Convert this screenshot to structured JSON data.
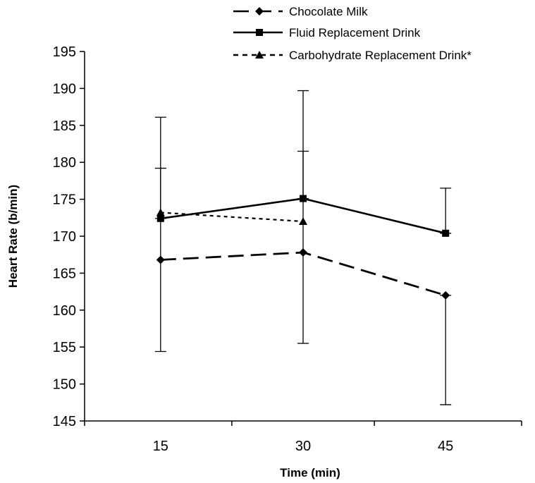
{
  "chart_data": {
    "type": "line",
    "xlabel": "Time (min)",
    "ylabel": "Heart Rate (b/min)",
    "x": [
      15,
      30,
      45
    ],
    "xlim": [
      7,
      53
    ],
    "ylim": [
      145,
      195
    ],
    "yticks": [
      145,
      150,
      155,
      160,
      165,
      170,
      175,
      180,
      185,
      190,
      195
    ],
    "grid": false,
    "legend_position": "top",
    "series": [
      {
        "name": "Chocolate Milk",
        "style": "dashed",
        "marker": "diamond",
        "values": [
          166.8,
          167.8,
          162.0
        ],
        "error_upper": [
          179.2,
          181.5,
          162.0
        ],
        "error_lower": [
          154.4,
          155.5,
          147.2
        ]
      },
      {
        "name": "Fluid Replacement Drink",
        "style": "solid",
        "marker": "square",
        "values": [
          172.4,
          175.1,
          170.4
        ],
        "error_upper": [
          186.1,
          189.7,
          176.5
        ],
        "error_lower": [
          172.4,
          175.1,
          170.4
        ]
      },
      {
        "name": "Carbohydrate Replacement Drink*",
        "style": "dotted",
        "marker": "triangle",
        "values": [
          173.2,
          172.0,
          null
        ],
        "error_upper": [
          null,
          null,
          null
        ],
        "error_lower": [
          null,
          null,
          null
        ]
      }
    ]
  }
}
